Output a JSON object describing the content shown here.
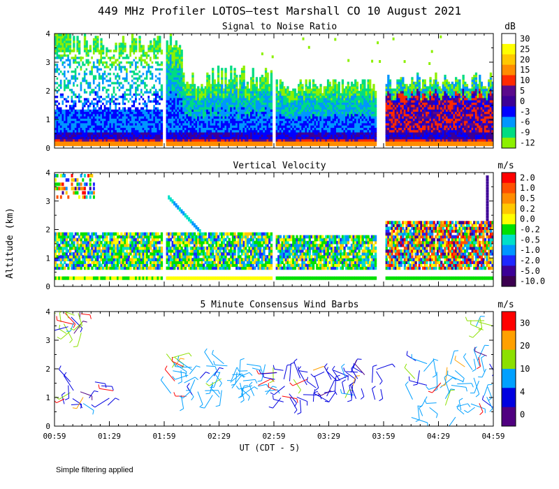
{
  "title": "449 MHz Profiler LOTOS—test Marshall CO 10 August 2021",
  "ylabel": "Altitude (km)",
  "xlabel": "UT  (CDT - 5)",
  "x_ticks": [
    "00:59",
    "01:29",
    "01:59",
    "02:29",
    "02:59",
    "03:29",
    "03:59",
    "04:29",
    "04:59"
  ],
  "y_ticks": [
    "0",
    "1",
    "2",
    "3",
    "4"
  ],
  "footnote": "Simple filtering applied",
  "panels": [
    {
      "title": "Signal to Noise Ratio",
      "unit": "dB",
      "colorbar_labels": [
        "30",
        "25",
        "20",
        "15",
        "10",
        "5",
        "0",
        "-3",
        "-6",
        "-9",
        "-12"
      ]
    },
    {
      "title": "Vertical Velocity",
      "unit": "m/s",
      "colorbar_labels": [
        "2.0",
        "1.0",
        "0.5",
        "0.2",
        "0.0",
        "-0.2",
        "-0.5",
        "-1.0",
        "-2.0",
        "-5.0",
        "-10.0"
      ]
    },
    {
      "title": "5 Minute Consensus Wind Barbs",
      "unit": "m/s",
      "colorbar_labels": [
        "30",
        "20",
        "10",
        "4",
        "0"
      ]
    }
  ],
  "colors": {
    "snr_scale": [
      "#ffffff",
      "#ffff00",
      "#ffc800",
      "#ff8c00",
      "#ff2a00",
      "#5a0a8c",
      "#3c0096",
      "#0000ff",
      "#0096ff",
      "#00dc82",
      "#8cf000"
    ],
    "vv_scale": [
      "#ff0000",
      "#ff5000",
      "#ff8c00",
      "#ffc800",
      "#ffff00",
      "#00e000",
      "#00e0c8",
      "#0096ff",
      "#1e28ff",
      "#3c0096",
      "#3c0050"
    ],
    "wind_scale": [
      "#ff0000",
      "#ffa000",
      "#8ce000",
      "#00a0ff",
      "#0000e0",
      "#500080"
    ]
  },
  "chart_data": [
    {
      "type": "heatmap",
      "title": "Signal to Noise Ratio",
      "unit": "dB",
      "x_range_ut": [
        "00:59",
        "04:59"
      ],
      "ylim_km": [
        0,
        4
      ],
      "data_gaps_ut": [
        [
          "01:58",
          "02:00"
        ],
        [
          "02:58",
          "03:00"
        ],
        [
          "03:55",
          "04:02"
        ]
      ],
      "colorbar_levels": [
        30,
        25,
        20,
        15,
        10,
        5,
        0,
        -3,
        -6,
        -9,
        -12
      ],
      "description_ranges": [
        {
          "ut": "00:59-01:58",
          "alt_top_km": 4.0,
          "pattern": "strong low layer near surface, broad >0 dB to 4 km"
        },
        {
          "ut": "02:00-02:58",
          "alt_top_km": 3.2,
          "pattern": "decreasing layer depth"
        },
        {
          "ut": "03:00-03:55",
          "alt_top_km": 2.3,
          "pattern": "moderate 0-5 dB"
        },
        {
          "ut": "04:02-04:59",
          "alt_top_km": 2.4,
          "pattern": "enhanced 5-15 dB convective plumes"
        }
      ]
    },
    {
      "type": "heatmap",
      "title": "Vertical Velocity",
      "unit": "m/s",
      "x_range_ut": [
        "00:59",
        "04:59"
      ],
      "ylim_km": [
        0,
        4
      ],
      "colorbar_levels": [
        2.0,
        1.0,
        0.5,
        0.2,
        0.0,
        -0.2,
        -0.5,
        -1.0,
        -2.0,
        -5.0,
        -10.0
      ]
    },
    {
      "type": "scatter",
      "title": "5 Minute Consensus Wind Barbs",
      "unit": "m/s",
      "x_range_ut": [
        "00:59",
        "04:59"
      ],
      "ylim_km": [
        0,
        4
      ],
      "colorbar_levels": [
        30,
        20,
        10,
        4,
        0
      ],
      "wind_barb_clusters": [
        {
          "ut": "01:00-01:15",
          "alt_km": [
            3.2,
            4.0
          ],
          "speed_ms": 12
        },
        {
          "ut": "01:05-01:30",
          "alt_km": [
            0.7,
            1.6
          ],
          "speed_ms": 3
        },
        {
          "ut": "01:59-02:05",
          "alt_km": [
            2.2,
            2.5
          ],
          "speed_ms": 10
        },
        {
          "ut": "02:05-02:59",
          "alt_km": [
            1.0,
            2.0
          ],
          "speed_ms": 6
        },
        {
          "ut": "03:00-03:59",
          "alt_km": [
            0.8,
            1.9
          ],
          "speed_ms": 5
        },
        {
          "ut": "04:15-04:59",
          "alt_km": [
            0.3,
            2.5
          ],
          "speed_ms": 5
        },
        {
          "ut": "04:50-04:59",
          "alt_km": [
            3.0,
            3.8
          ],
          "speed_ms": 10
        }
      ]
    }
  ]
}
